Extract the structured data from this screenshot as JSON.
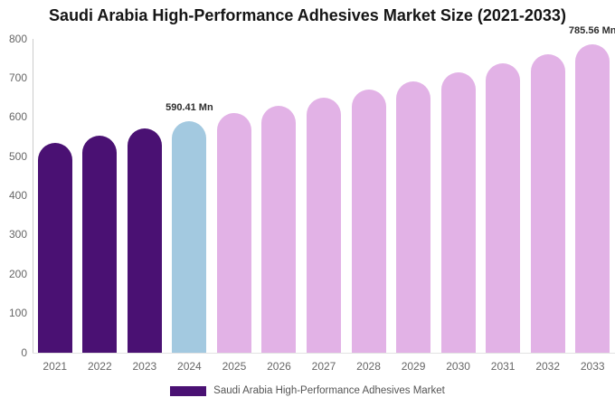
{
  "title": "Saudi Arabia High-Performance Adhesives Market Size (2021-2033)",
  "legend": {
    "label": "Saudi Arabia High-Performance Adhesives Market",
    "swatch_color": "#4a1173"
  },
  "colors": {
    "historical": "#4a1173",
    "current": "#a3c9e0",
    "forecast": "#e2b2e6",
    "axis_line": "#cccccc",
    "baseline": "#e3e3e3",
    "tick_text": "#666666",
    "legend_text": "#555555",
    "title_text": "#151515",
    "annotation_text": "#2d2d2d",
    "background": "#ffffff"
  },
  "chart_data": {
    "type": "bar",
    "title": "Saudi Arabia High-Performance Adhesives Market Size (2021-2033)",
    "unit": "Mn",
    "categories": [
      "2021",
      "2022",
      "2023",
      "2024",
      "2025",
      "2026",
      "2027",
      "2028",
      "2029",
      "2030",
      "2031",
      "2032",
      "2033"
    ],
    "values": [
      535,
      553,
      571,
      590.41,
      610,
      630,
      650,
      671,
      692,
      714,
      737,
      761,
      785.56
    ],
    "value_roles": [
      "historical",
      "historical",
      "historical",
      "current",
      "forecast",
      "forecast",
      "forecast",
      "forecast",
      "forecast",
      "forecast",
      "forecast",
      "forecast",
      "forecast"
    ],
    "point_labels": [
      null,
      null,
      null,
      "590.41 Mn",
      null,
      null,
      null,
      null,
      null,
      null,
      null,
      null,
      "785.56 Mn"
    ],
    "ylim": [
      0,
      800
    ],
    "yticks": [
      0,
      100,
      200,
      300,
      400,
      500,
      600,
      700,
      800
    ],
    "xlabel": "",
    "ylabel": "",
    "grid": false,
    "legend_position": "bottom",
    "legend_entries": [
      "Saudi Arabia High-Performance Adhesives Market"
    ]
  }
}
